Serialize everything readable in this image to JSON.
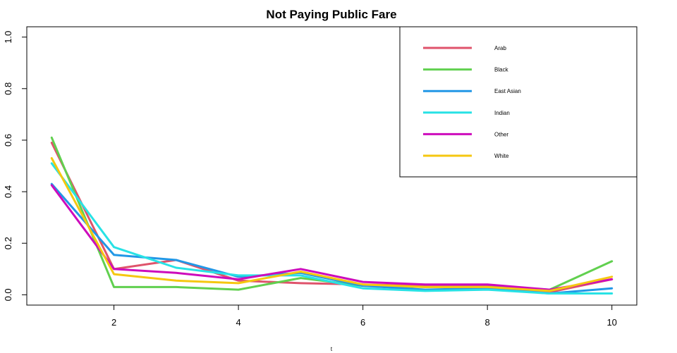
{
  "chart_data": {
    "type": "line",
    "title": "Not Paying Public Fare",
    "xlabel": "t",
    "ylabel": "",
    "xlim": [
      0.6,
      10.4
    ],
    "ylim": [
      -0.04,
      1.04
    ],
    "xticks": [
      2,
      4,
      6,
      8,
      10
    ],
    "yticks": [
      0.0,
      0.2,
      0.4,
      0.6,
      0.8,
      1.0
    ],
    "xtick_labels": [
      "2",
      "4",
      "6",
      "8",
      "10"
    ],
    "ytick_labels": [
      "0.0",
      "0.2",
      "0.4",
      "0.6",
      "0.8",
      "1.0"
    ],
    "legend_position": "top-right",
    "grid": false,
    "x": [
      1,
      2,
      3,
      4,
      5,
      6,
      7,
      8,
      9,
      10
    ],
    "series": [
      {
        "name": "Arab",
        "color": "#df536b",
        "values": [
          0.59,
          0.1,
          0.135,
          0.055,
          0.045,
          0.04,
          0.035,
          0.035,
          0.01,
          0.06
        ]
      },
      {
        "name": "Black",
        "color": "#61d04f",
        "values": [
          0.61,
          0.03,
          0.03,
          0.02,
          0.065,
          0.035,
          0.03,
          0.03,
          0.02,
          0.13
        ]
      },
      {
        "name": "East Asian",
        "color": "#2297e6",
        "values": [
          0.43,
          0.155,
          0.135,
          0.07,
          0.085,
          0.035,
          0.02,
          0.025,
          0.005,
          0.025
        ]
      },
      {
        "name": "Indian",
        "color": "#28e2e5",
        "values": [
          0.51,
          0.185,
          0.105,
          0.075,
          0.075,
          0.025,
          0.015,
          0.02,
          0.005,
          0.005
        ]
      },
      {
        "name": "Other",
        "color": "#cd0bbc",
        "values": [
          0.425,
          0.1,
          0.085,
          0.06,
          0.1,
          0.05,
          0.04,
          0.04,
          0.02,
          0.06
        ]
      },
      {
        "name": "White",
        "color": "#f5c710",
        "values": [
          0.53,
          0.08,
          0.055,
          0.045,
          0.09,
          0.04,
          0.03,
          0.03,
          0.015,
          0.07
        ]
      }
    ]
  }
}
